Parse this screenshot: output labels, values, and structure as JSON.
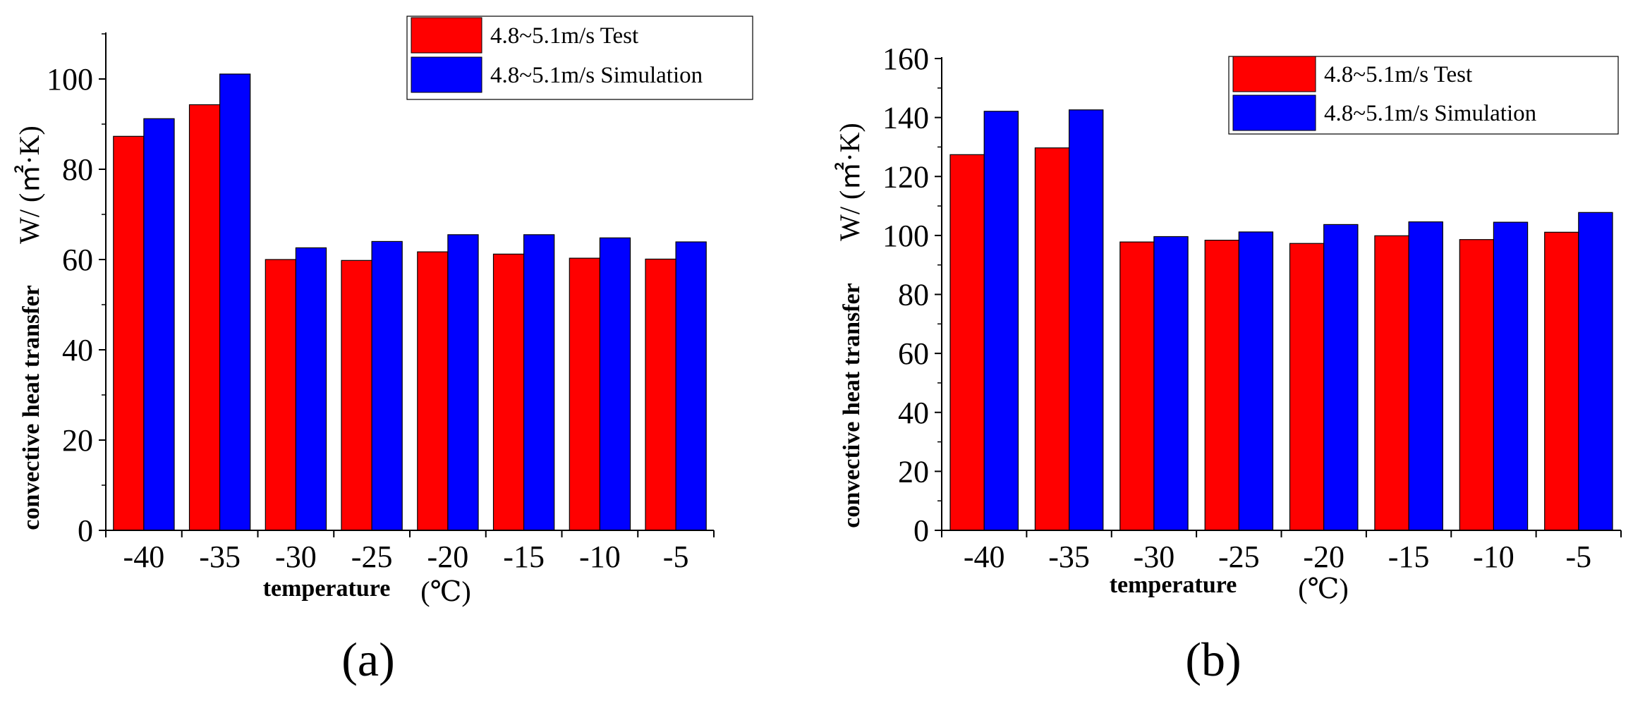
{
  "colors": {
    "test": "#ff0000",
    "simulation": "#0000ff",
    "axis": "#000000"
  },
  "chart_data": [
    {
      "type": "bar",
      "panel_label": "(a)",
      "categories": [
        "-40",
        "-35",
        "-30",
        "-25",
        "-20",
        "-15",
        "-10",
        "-5"
      ],
      "series": [
        {
          "name": "4.8~5.1m/s Test",
          "values": [
            87.3,
            94.3,
            60.0,
            59.8,
            61.7,
            61.2,
            60.3,
            60.1
          ]
        },
        {
          "name": "4.8~5.1m/s Simulation",
          "values": [
            91.2,
            101.1,
            62.6,
            64.0,
            65.5,
            65.5,
            64.8,
            63.9
          ]
        }
      ],
      "ylim": [
        0,
        110
      ],
      "yticks": [
        0,
        20,
        40,
        60,
        80,
        100
      ],
      "ylabel_bold": "convective heat transfer",
      "ylabel_unit": "W/ (㎡·K)",
      "xlabel_bold": "temperature",
      "xlabel_unit": "(℃)",
      "legend_position": "top-right"
    },
    {
      "type": "bar",
      "panel_label": "(b)",
      "categories": [
        "-40",
        "-35",
        "-30",
        "-25",
        "-20",
        "-15",
        "-10",
        "-5"
      ],
      "series": [
        {
          "name": "4.8~5.1m/s Test",
          "values": [
            127.4,
            129.7,
            97.8,
            98.4,
            97.3,
            99.9,
            98.6,
            101.1
          ]
        },
        {
          "name": "4.8~5.1m/s Simulation",
          "values": [
            142.1,
            142.6,
            99.6,
            101.2,
            103.7,
            104.6,
            104.5,
            107.8
          ]
        }
      ],
      "ylim": [
        0,
        160
      ],
      "yticks": [
        0,
        20,
        40,
        60,
        80,
        100,
        120,
        140,
        160
      ],
      "ylabel_bold": "convective heat transfer",
      "ylabel_unit": "W/ (㎡·K)",
      "xlabel_bold": "temperature",
      "xlabel_unit": "(℃)",
      "legend_position": "top-right"
    }
  ]
}
